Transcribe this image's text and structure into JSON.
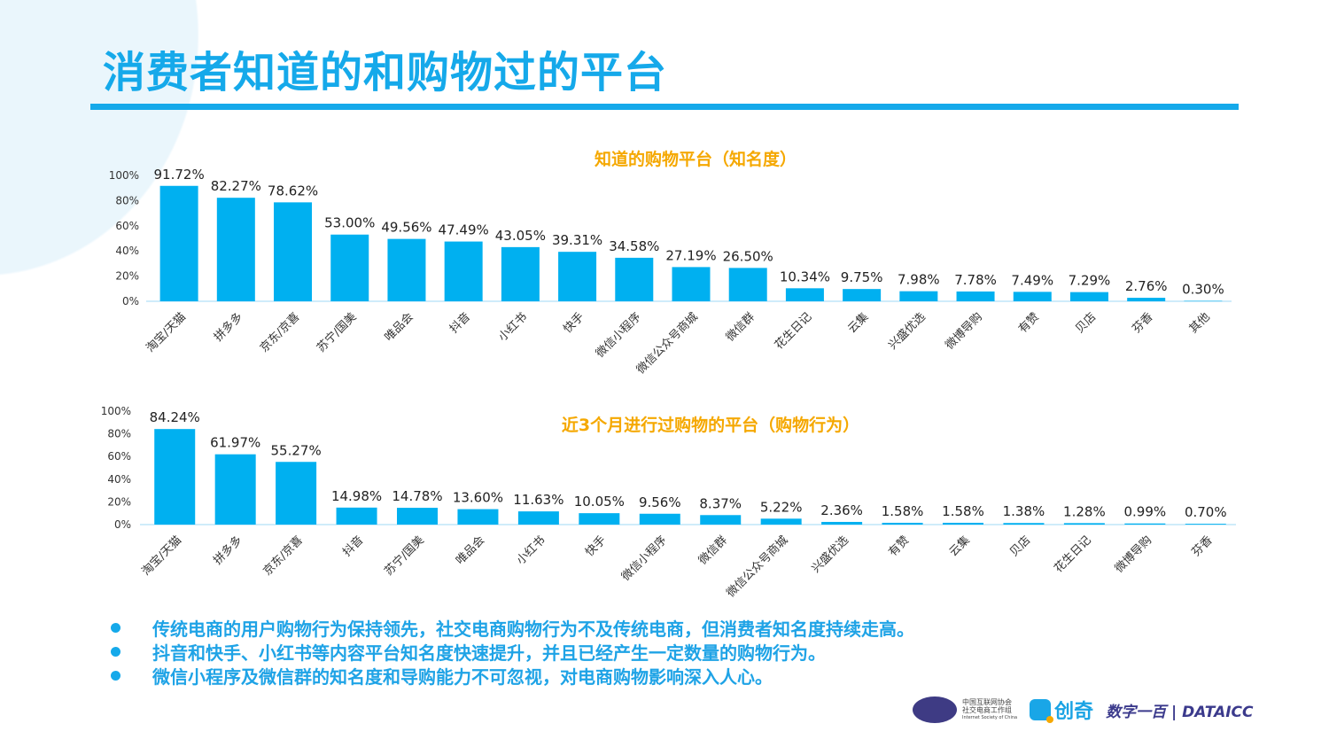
{
  "title": "消费者知道的和购物过的平台",
  "colors": {
    "title": "#15a9ea",
    "bar": "#00b0f0",
    "subtitle": "#f5a800"
  },
  "chart_data": [
    {
      "type": "bar",
      "title": "知道的购物平台（知名度）",
      "categories": [
        "淘宝/天猫",
        "拼多多",
        "京东/京喜",
        "苏宁/国美",
        "唯品会",
        "抖音",
        "小红书",
        "快手",
        "微信小程序",
        "微信公众号商城",
        "微信群",
        "花生日记",
        "云集",
        "兴盛优选",
        "微博导购",
        "有赞",
        "贝店",
        "芬香",
        "其他"
      ],
      "values": [
        91.72,
        82.27,
        78.62,
        53.0,
        49.56,
        47.49,
        43.05,
        39.31,
        34.58,
        27.19,
        26.5,
        10.34,
        9.75,
        7.98,
        7.78,
        7.49,
        7.29,
        2.76,
        0.3
      ],
      "labels": [
        "91.72%",
        "82.27%",
        "78.62%",
        "53.00%",
        "49.56%",
        "47.49%",
        "43.05%",
        "39.31%",
        "34.58%",
        "27.19%",
        "26.50%",
        "10.34%",
        "9.75%",
        "7.98%",
        "7.78%",
        "7.49%",
        "7.29%",
        "2.76%",
        "0.30%"
      ],
      "yticks": [
        "0%",
        "20%",
        "40%",
        "60%",
        "80%",
        "100%"
      ],
      "ylim": [
        0,
        100
      ]
    },
    {
      "type": "bar",
      "title": "近3个月进行过购物的平台（购物行为）",
      "categories": [
        "淘宝/天猫",
        "拼多多",
        "京东/京喜",
        "抖音",
        "苏宁/国美",
        "唯品会",
        "小红书",
        "快手",
        "微信小程序",
        "微信群",
        "微信公众号商城",
        "兴盛优选",
        "有赞",
        "云集",
        "贝店",
        "花生日记",
        "微博导购",
        "芬香"
      ],
      "values": [
        84.24,
        61.97,
        55.27,
        14.98,
        14.78,
        13.6,
        11.63,
        10.05,
        9.56,
        8.37,
        5.22,
        2.36,
        1.58,
        1.58,
        1.38,
        1.28,
        0.99,
        0.7
      ],
      "labels": [
        "84.24%",
        "61.97%",
        "55.27%",
        "14.98%",
        "14.78%",
        "13.60%",
        "11.63%",
        "10.05%",
        "9.56%",
        "8.37%",
        "5.22%",
        "2.36%",
        "1.58%",
        "1.58%",
        "1.38%",
        "1.28%",
        "0.99%",
        "0.70%"
      ],
      "yticks": [
        "0%",
        "20%",
        "40%",
        "60%",
        "80%",
        "100%"
      ],
      "ylim": [
        0,
        100
      ]
    }
  ],
  "bullets": [
    "传统电商的用户购物行为保持领先，社交电商购物行为不及传统电商，但消费者知名度持续走高。",
    "抖音和快手、小红书等内容平台知名度快速提升，并且已经产生一定数量的购物行为。",
    "微信小程序及微信群的知名度和导购能力不可忽视，对电商购物影响深入人心。"
  ],
  "logos": {
    "isc_cn_line1": "中国互联网协会",
    "isc_cn_line2": "社交电商工作组",
    "isc_en": "Internet Society of China",
    "chuangqi": "创奇",
    "dataicc": "数字一百 | DATAICC"
  }
}
